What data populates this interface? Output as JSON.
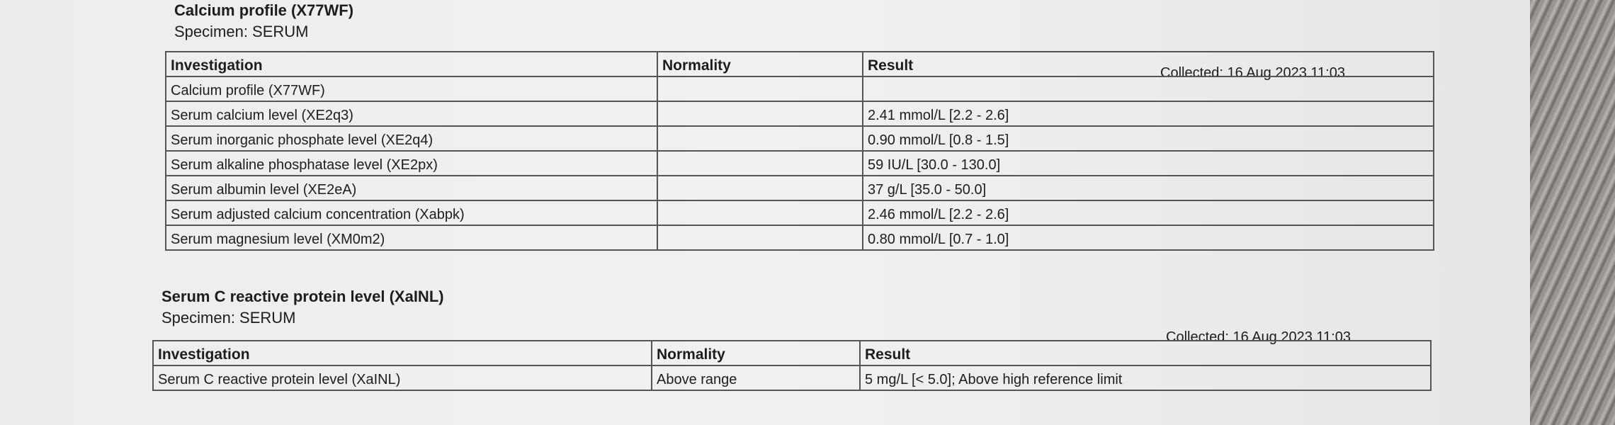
{
  "sections": [
    {
      "title": "Calcium profile (X77WF)",
      "specimen": "Specimen: SERUM",
      "collected": "Collected: 16 Aug 2023 11:03",
      "columns": [
        "Investigation",
        "Normality",
        "Result"
      ],
      "rows": [
        {
          "investigation": "Calcium profile (X77WF)"
        },
        {
          "investigation": "Serum calcium level (XE2q3)",
          "result": "2.41 mmol/L [2.2 - 2.6]"
        },
        {
          "investigation": "Serum inorganic phosphate level (XE2q4)",
          "result": "0.90 mmol/L [0.8 - 1.5]"
        },
        {
          "investigation": "Serum alkaline phosphatase level (XE2px)",
          "result": "59 IU/L [30.0 - 130.0]"
        },
        {
          "investigation": "Serum albumin level (XE2eA)",
          "result": "37 g/L [35.0 - 50.0]"
        },
        {
          "investigation": "Serum adjusted calcium concentration (Xabpk)",
          "result": "2.46 mmol/L [2.2 - 2.6]"
        },
        {
          "investigation": "Serum magnesium level (XM0m2)",
          "result": "0.80 mmol/L [0.7 - 1.0]"
        }
      ]
    },
    {
      "title": "Serum C reactive protein level (XaINL)",
      "specimen": "Specimen: SERUM",
      "collected": "Collected: 16 Aug 2023 11:03",
      "columns": [
        "Investigation",
        "Normality",
        "Result"
      ],
      "rows": [
        {
          "investigation": "Serum C reactive protein level (XaINL)",
          "normality": "Above range",
          "result": "5 mg/L [< 5.0]; Above high reference limit"
        }
      ]
    }
  ]
}
